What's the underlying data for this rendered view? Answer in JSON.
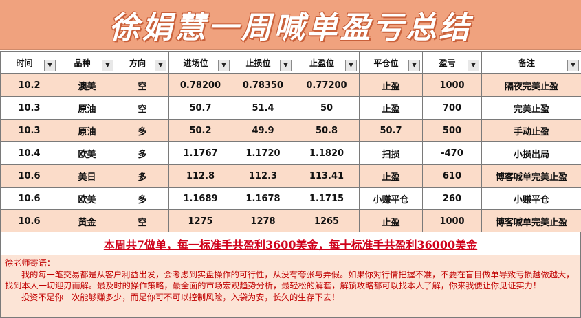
{
  "banner": {
    "title": "徐娟慧一周喊单盈亏总结"
  },
  "table": {
    "headers": [
      "时间",
      "品种",
      "方向",
      "进场位",
      "止损位",
      "止盈位",
      "平仓位",
      "盈亏",
      "备注"
    ],
    "filter_icon": "dropdown-arrow",
    "rows": [
      [
        "10.2",
        "澳美",
        "空",
        "0.78200",
        "0.78350",
        "0.77200",
        "止盈",
        "1000",
        "隔夜完美止盈"
      ],
      [
        "10.3",
        "原油",
        "空",
        "50.7",
        "51.4",
        "50",
        "止盈",
        "700",
        "完美止盈"
      ],
      [
        "10.3",
        "原油",
        "多",
        "50.2",
        "49.9",
        "50.8",
        "50.7",
        "500",
        "手动止盈"
      ],
      [
        "10.4",
        "欧美",
        "多",
        "1.1767",
        "1.1720",
        "1.1820",
        "扫损",
        "-470",
        "小损出局"
      ],
      [
        "10.6",
        "美日",
        "多",
        "112.8",
        "112.3",
        "113.41",
        "止盈",
        "610",
        "博客喊单完美止盈"
      ],
      [
        "10.6",
        "欧美",
        "多",
        "1.1689",
        "1.1678",
        "1.1715",
        "小赚平仓",
        "260",
        "小赚平仓"
      ],
      [
        "10.6",
        "黄金",
        "空",
        "1275",
        "1278",
        "1265",
        "止盈",
        "1000",
        "博客喊单完美止盈"
      ]
    ]
  },
  "summary": "本周共7做单，每一标准手共盈利3600美金，每十标准手共盈利36000美金",
  "message": {
    "title": "徐老师寄语：",
    "para1": "我的每一笔交易都是从客户利益出发，会考虑到实盘操作的可行性，从没有夸张与弄假。如果你对行情把握不准，不要在盲目做单导致亏损越做越大，找到本人一切迎刃而解。最及时的操作策略，最全面的市场宏观趋势分析，最轻松的解套，解锁攻略都可以找本人了解，你来我便让你见证实力！",
    "para2": "投资不是你一次能够赚多少，而是你可不可以控制风险，入袋为安，长久的生存下去！"
  },
  "colors": {
    "banner_bg": "#f0a27e",
    "alt_row": "#fbdcc9",
    "pnl_red": "#d0021b",
    "message_bg": "#fce4d6"
  }
}
